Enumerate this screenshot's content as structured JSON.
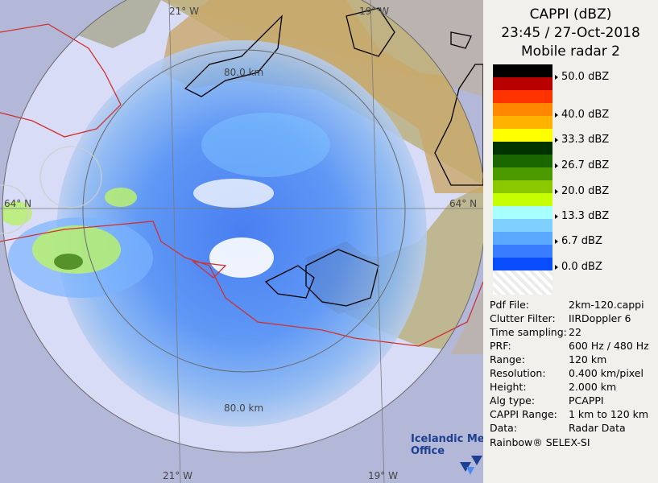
{
  "title": {
    "product": "CAPPI (dBZ)",
    "datetime": "23:45 / 27-Oct-2018",
    "radar": "Mobile radar 2"
  },
  "map": {
    "lon_labels_top": [
      "21° W",
      "19° W"
    ],
    "lon_labels_bottom": [
      "21° W",
      "19° W"
    ],
    "lat_labels": [
      "64° N",
      "64° N"
    ],
    "range_labels": [
      "80.0 km",
      "80.0 km"
    ],
    "coastline_color": "#000000",
    "border_color": "#d03030",
    "grid_color": "#6a6a6a"
  },
  "color_scale": {
    "labels": [
      "50.0 dBZ",
      "40.0 dBZ",
      "33.3 dBZ",
      "26.7 dBZ",
      "20.0 dBZ",
      "13.3 dBZ",
      "6.7 dBZ",
      "0.0 dBZ"
    ],
    "colors": [
      "#000000",
      "#b80000",
      "#ff3300",
      "#ff8800",
      "#ffb300",
      "#ffff00",
      "#003300",
      "#1a6600",
      "#4a9a00",
      "#8cc800",
      "#c8ff00",
      "#a8ffff",
      "#80d0ff",
      "#5aa8ff",
      "#3a7cff",
      "#0a4cff",
      "#ffffff"
    ]
  },
  "info": [
    {
      "key": "Pdf File:",
      "value": "2km-120.cappi"
    },
    {
      "key": "Clutter Filter:",
      "value": "IIRDoppler 6"
    },
    {
      "key": "Time sampling:",
      "value": "22"
    },
    {
      "key": "PRF:",
      "value": "600 Hz / 480 Hz"
    },
    {
      "key": "Range:",
      "value": "120 km"
    },
    {
      "key": "Resolution:",
      "value": "0.400 km/pixel"
    },
    {
      "key": "Height:",
      "value": "2.000 km"
    },
    {
      "key": "Alg type:",
      "value": "PCAPPI"
    },
    {
      "key": "CAPPI Range:",
      "value": "1 km to 120 km"
    },
    {
      "key": "Data:",
      "value": "Radar Data"
    }
  ],
  "footer": "Rainbow® SELEX-SI",
  "logo": {
    "line1": "Icelandic Met",
    "line2": "Office"
  }
}
